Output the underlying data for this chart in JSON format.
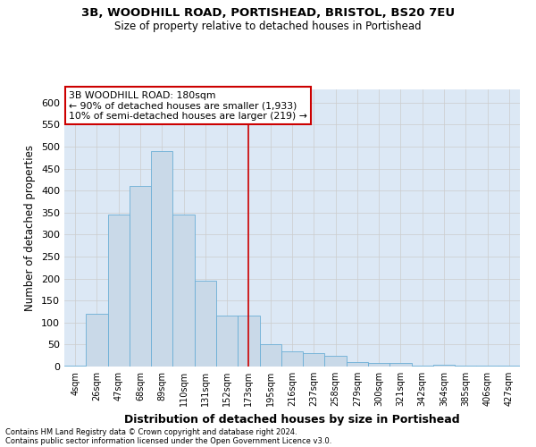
{
  "title1": "3B, WOODHILL ROAD, PORTISHEAD, BRISTOL, BS20 7EU",
  "title2": "Size of property relative to detached houses in Portishead",
  "xlabel": "Distribution of detached houses by size in Portishead",
  "ylabel": "Number of detached properties",
  "footer1": "Contains HM Land Registry data © Crown copyright and database right 2024.",
  "footer2": "Contains public sector information licensed under the Open Government Licence v3.0.",
  "bin_labels": [
    "4sqm",
    "26sqm",
    "47sqm",
    "68sqm",
    "89sqm",
    "110sqm",
    "131sqm",
    "152sqm",
    "173sqm",
    "195sqm",
    "216sqm",
    "237sqm",
    "258sqm",
    "279sqm",
    "300sqm",
    "321sqm",
    "342sqm",
    "364sqm",
    "385sqm",
    "406sqm",
    "427sqm"
  ],
  "bar_heights": [
    2,
    120,
    345,
    410,
    490,
    345,
    195,
    115,
    115,
    50,
    35,
    30,
    25,
    10,
    8,
    8,
    2,
    5,
    2,
    2,
    2
  ],
  "bar_color": "#c9d9e8",
  "bar_edge_color": "#6baed6",
  "grid_color": "#cccccc",
  "vline_x": 8,
  "vline_color": "#cc0000",
  "annotation_line1": "3B WOODHILL ROAD: 180sqm",
  "annotation_line2": "← 90% of detached houses are smaller (1,933)",
  "annotation_line3": "10% of semi-detached houses are larger (219) →",
  "annotation_box_color": "#cc0000",
  "ylim": [
    0,
    630
  ],
  "yticks": [
    0,
    50,
    100,
    150,
    200,
    250,
    300,
    350,
    400,
    450,
    500,
    550,
    600
  ],
  "background_color": "#dce8f5",
  "fig_width": 6.0,
  "fig_height": 5.0,
  "dpi": 100
}
